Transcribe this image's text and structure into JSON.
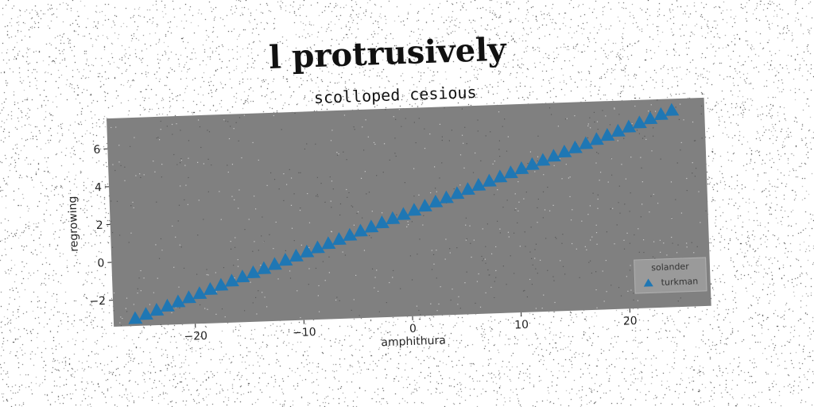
{
  "chart_data": {
    "type": "scatter",
    "title": "l protrusively",
    "subtitle": "scolloped cesious",
    "xlabel": "amphithura",
    "ylabel": "regrowing",
    "xlim": [
      -27.5,
      27.5
    ],
    "ylim": [
      -3.4,
      7.6
    ],
    "xticks": [
      -20,
      -10,
      0,
      10,
      20
    ],
    "yticks": [
      -2,
      0,
      2,
      4,
      6
    ],
    "grid": false,
    "legend": {
      "title": "solander",
      "position": "lower-right"
    },
    "plot_background": "#808080",
    "series": [
      {
        "name": "turkman",
        "marker": "triangle-up",
        "color": "#1f77b4",
        "x": [
          -25.5,
          -24.5,
          -23.5,
          -22.5,
          -21.5,
          -20.5,
          -19.5,
          -18.5,
          -17.5,
          -16.5,
          -15.5,
          -14.5,
          -13.5,
          -12.5,
          -11.5,
          -10.5,
          -9.5,
          -8.5,
          -7.5,
          -6.5,
          -5.5,
          -4.5,
          -3.5,
          -2.5,
          -1.5,
          -0.5,
          0.5,
          1.5,
          2.5,
          3.5,
          4.5,
          5.5,
          6.5,
          7.5,
          8.5,
          9.5,
          10.5,
          11.5,
          12.5,
          13.5,
          14.5,
          15.5,
          16.5,
          17.5,
          18.5,
          19.5,
          20.5,
          21.5,
          22.5,
          23.5,
          24.5
        ],
        "y": [
          -3.0,
          -2.8,
          -2.6,
          -2.4,
          -2.2,
          -2.0,
          -1.8,
          -1.6,
          -1.4,
          -1.2,
          -1.0,
          -0.8,
          -0.6,
          -0.4,
          -0.2,
          0.0,
          0.2,
          0.4,
          0.6,
          0.8,
          1.0,
          1.2,
          1.4,
          1.6,
          1.8,
          2.0,
          2.2,
          2.4,
          2.6,
          2.8,
          3.0,
          3.2,
          3.4,
          3.6,
          3.8,
          4.0,
          4.2,
          4.4,
          4.6,
          4.8,
          5.0,
          5.2,
          5.4,
          5.6,
          5.8,
          6.0,
          6.2,
          6.4,
          6.6,
          6.8,
          7.0
        ]
      }
    ]
  }
}
